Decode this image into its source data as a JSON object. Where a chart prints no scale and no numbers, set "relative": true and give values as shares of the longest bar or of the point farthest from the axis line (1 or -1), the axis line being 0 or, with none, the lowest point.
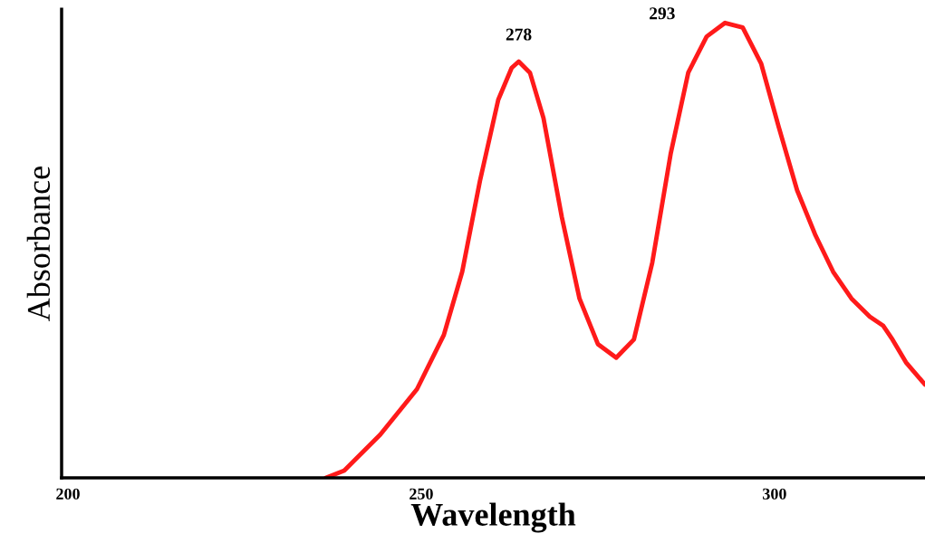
{
  "chart_data": {
    "type": "line",
    "relative": true,
    "xlabel": "Wavelength",
    "ylabel": "Absorbance",
    "xlim": [
      199.1,
      321.3
    ],
    "xticks": [
      200,
      250,
      300
    ],
    "tick_labels": "x",
    "marker": "none",
    "line_style": "solid",
    "annotations": [
      {
        "text": "278",
        "x": 263.8,
        "y": 0.915
      },
      {
        "text": "293",
        "x": 293.0,
        "y": 1.0
      }
    ],
    "series": [
      {
        "color": "#ff1a1a",
        "x": [
          236.5,
          239.1,
          244.2,
          249.4,
          253.2,
          255.8,
          258.3,
          260.9,
          262.8,
          263.8,
          265.4,
          267.3,
          269.9,
          272.4,
          275.0,
          277.6,
          280.1,
          282.7,
          285.3,
          287.8,
          290.4,
          293.0,
          295.5,
          298.1,
          300.6,
          303.2,
          305.8,
          308.3,
          310.9,
          313.5,
          315.4,
          316.7,
          318.6,
          321.3
        ],
        "values": [
          0,
          0.016,
          0.095,
          0.195,
          0.314,
          0.453,
          0.652,
          0.831,
          0.901,
          0.915,
          0.89,
          0.791,
          0.573,
          0.394,
          0.294,
          0.264,
          0.304,
          0.473,
          0.712,
          0.891,
          0.97,
          1.0,
          0.99,
          0.911,
          0.771,
          0.632,
          0.533,
          0.453,
          0.394,
          0.354,
          0.334,
          0.304,
          0.254,
          0.205
        ]
      }
    ]
  }
}
